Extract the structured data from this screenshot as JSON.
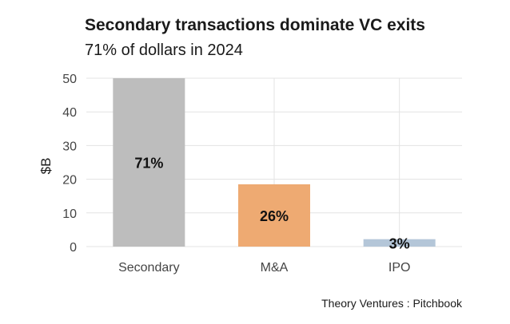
{
  "chart_data": {
    "type": "bar",
    "title": "Secondary transactions dominate VC exits",
    "subtitle": "71% of dollars in 2024",
    "xlabel": "",
    "ylabel": "$B",
    "categories": [
      "Secondary",
      "M&A",
      "IPO"
    ],
    "values": [
      50,
      18.5,
      2.2
    ],
    "data_labels": [
      "71%",
      "26%",
      "3%"
    ],
    "colors": [
      "#bdbdbd",
      "#eeaa72",
      "#b4c6d8"
    ],
    "ylim": [
      0,
      50
    ],
    "yticks": [
      0,
      10,
      20,
      30,
      40,
      50
    ],
    "grid": true,
    "source": "Theory Ventures : Pitchbook"
  }
}
